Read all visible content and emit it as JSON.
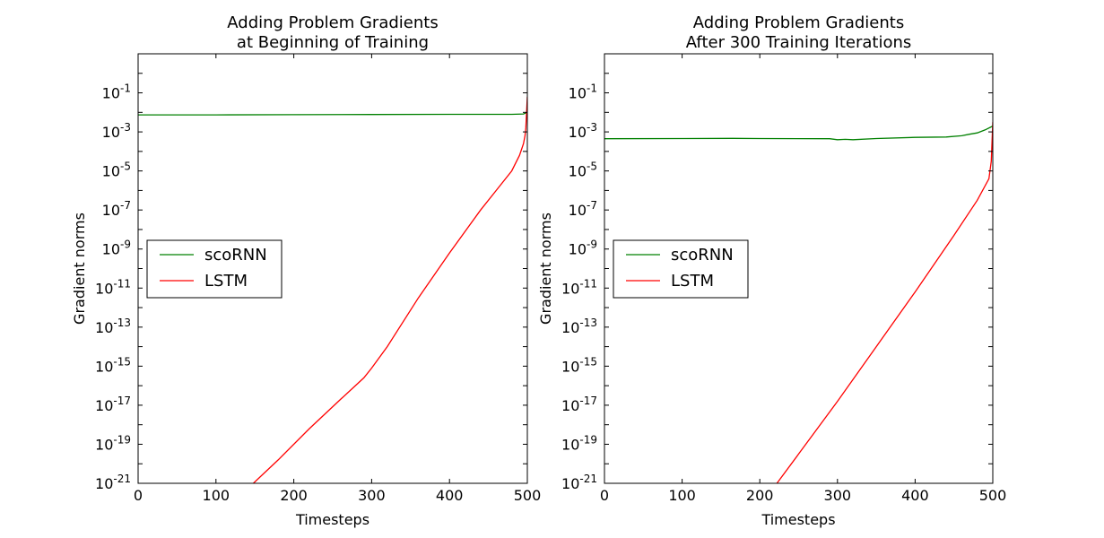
{
  "chart_data": [
    {
      "type": "line",
      "title": [
        "Adding Problem Gradients",
        "at Beginning of Training"
      ],
      "xlabel": "Timesteps",
      "ylabel": "Gradient norms",
      "yscale": "log",
      "xlim": [
        0,
        500
      ],
      "ylim_exp": [
        -21,
        1
      ],
      "xticks": [
        0,
        100,
        200,
        300,
        400,
        500
      ],
      "yticks_exp": [
        -21,
        -19,
        -17,
        -15,
        -13,
        -11,
        -9,
        -7,
        -5,
        -3,
        -1
      ],
      "ytick_base": "10",
      "legend_position": "center-left",
      "grid": false,
      "series": [
        {
          "name": "scoRNN",
          "color": "#008000",
          "x": [
            0,
            100,
            200,
            300,
            400,
            480,
            495,
            500
          ],
          "y_exp": [
            -2.13,
            -2.13,
            -2.12,
            -2.11,
            -2.1,
            -2.1,
            -2.08,
            -2.0
          ]
        },
        {
          "name": "LSTM",
          "color": "#ff0000",
          "x": [
            148,
            180,
            220,
            260,
            290,
            300,
            320,
            360,
            400,
            440,
            460,
            480,
            490,
            495,
            497,
            498,
            500
          ],
          "y_exp": [
            -21,
            -19.8,
            -18.2,
            -16.7,
            -15.6,
            -15.1,
            -14.0,
            -11.5,
            -9.2,
            -7.0,
            -6.0,
            -5.0,
            -4.2,
            -3.6,
            -3.2,
            -2.8,
            -1.2
          ]
        }
      ]
    },
    {
      "type": "line",
      "title": [
        "Adding Problem Gradients",
        "After 300 Training Iterations"
      ],
      "xlabel": "Timesteps",
      "ylabel": "Gradient norms",
      "yscale": "log",
      "xlim": [
        0,
        500
      ],
      "ylim_exp": [
        -21,
        1
      ],
      "xticks": [
        0,
        100,
        200,
        300,
        400,
        500
      ],
      "yticks_exp": [
        -21,
        -19,
        -17,
        -15,
        -13,
        -11,
        -9,
        -7,
        -5,
        -3,
        -1
      ],
      "ytick_base": "10",
      "legend_position": "center-left",
      "grid": false,
      "series": [
        {
          "name": "scoRNN",
          "color": "#008000",
          "x": [
            0,
            100,
            165,
            200,
            290,
            300,
            310,
            320,
            350,
            400,
            440,
            460,
            470,
            480,
            490,
            500
          ],
          "y_exp": [
            -3.35,
            -3.34,
            -3.33,
            -3.34,
            -3.35,
            -3.4,
            -3.38,
            -3.4,
            -3.34,
            -3.28,
            -3.26,
            -3.2,
            -3.12,
            -3.05,
            -2.9,
            -2.7
          ]
        },
        {
          "name": "LSTM",
          "color": "#ff0000",
          "x": [
            222,
            250,
            300,
            350,
            400,
            450,
            480,
            495,
            498,
            500
          ],
          "y_exp": [
            -21,
            -19.5,
            -16.8,
            -14.0,
            -11.2,
            -8.3,
            -6.5,
            -5.4,
            -4.5,
            -2.5
          ]
        }
      ]
    }
  ]
}
